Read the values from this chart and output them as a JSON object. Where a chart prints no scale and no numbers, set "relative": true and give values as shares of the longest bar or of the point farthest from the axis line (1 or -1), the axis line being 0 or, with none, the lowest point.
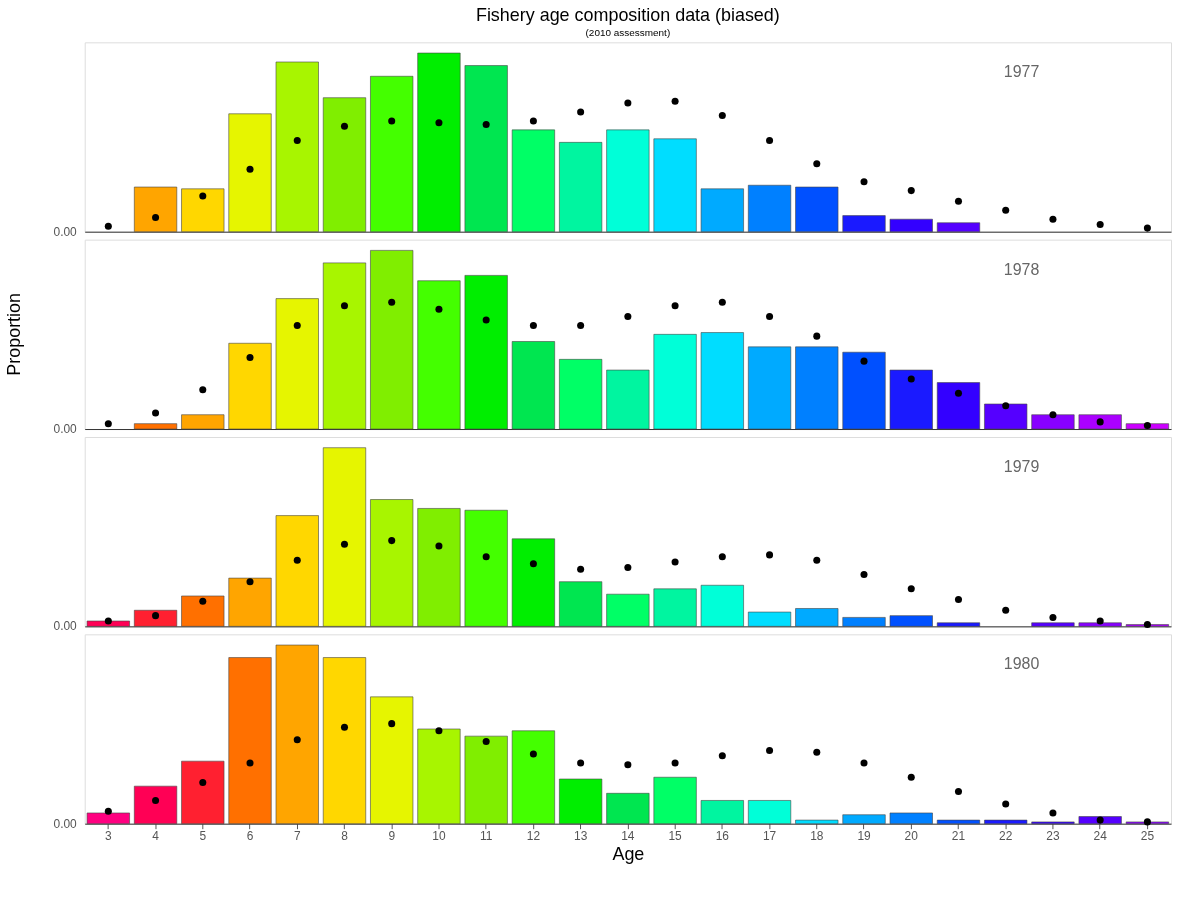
{
  "chart_data": [
    {
      "type": "bar",
      "title": "Fishery age composition data (biased)",
      "subtitle": "(2010 assessment)",
      "relative": true,
      "legend": false,
      "grid": false,
      "tick_labels": false,
      "marker": "circle",
      "annotations": [
        "1977",
        "0.00"
      ],
      "categories": [
        "3",
        "4",
        "5",
        "6",
        "7",
        "8",
        "9",
        "10",
        "11",
        "12",
        "13",
        "14",
        "15",
        "16",
        "17",
        "18",
        "19",
        "20",
        "21",
        "22",
        "23",
        "24",
        "25"
      ],
      "series": [
        {
          "colors": [
            "#ff7000",
            "#ffa500",
            "#ffd700",
            "#e6f500",
            "#a8f500",
            "#80ee00",
            "#44ff00",
            "#00ee00",
            "#00e650",
            "#00ff66",
            "#00f5a0",
            "#00ffd8",
            "#00ddff",
            "#00aaff",
            "#0080ff",
            "#0050ff",
            "#1a1aff",
            "#3300ff",
            "#5500ff",
            "#8800ff",
            "#aa00ff",
            "#cc00ff",
            "#dd00ee"
          ],
          "values": [
            0,
            0.25,
            0.24,
            0.66,
            0.95,
            0.75,
            0.87,
            1,
            0.93,
            0.57,
            0.5,
            0.57,
            0.52,
            0.24,
            0.26,
            0.25,
            0.09,
            0.07,
            0.05,
            0,
            0,
            0,
            0
          ]
        },
        {
          "type": "scatter",
          "color": "#000000",
          "values": [
            0.03,
            0.08,
            0.2,
            0.35,
            0.51,
            0.59,
            0.62,
            0.61,
            0.6,
            0.62,
            0.67,
            0.72,
            0.73,
            0.65,
            0.51,
            0.38,
            0.28,
            0.23,
            0.17,
            0.12,
            0.07,
            0.04,
            0.02
          ]
        }
      ]
    },
    {
      "type": "bar",
      "relative": true,
      "legend": false,
      "grid": false,
      "tick_labels": false,
      "marker": "circle",
      "ylabel": "Proportion",
      "annotations": [
        "1978",
        "0.00"
      ],
      "categories": [
        "3",
        "4",
        "5",
        "6",
        "7",
        "8",
        "9",
        "10",
        "11",
        "12",
        "13",
        "14",
        "15",
        "16",
        "17",
        "18",
        "19",
        "20",
        "21",
        "22",
        "23",
        "24",
        "25"
      ],
      "series": [
        {
          "colors": [
            "#ff2030",
            "#ff7000",
            "#ffa500",
            "#ffd700",
            "#e6f500",
            "#a8f500",
            "#80ee00",
            "#44ff00",
            "#00ee00",
            "#00e650",
            "#00ff66",
            "#00f5a0",
            "#00ffd8",
            "#00ddff",
            "#00aaff",
            "#0080ff",
            "#0050ff",
            "#1a1aff",
            "#3300ff",
            "#5500ff",
            "#8800ff",
            "#aa00ff",
            "#cc00ff"
          ],
          "values": [
            0,
            0.03,
            0.08,
            0.48,
            0.73,
            0.93,
            1,
            0.83,
            0.86,
            0.49,
            0.39,
            0.33,
            0.53,
            0.54,
            0.46,
            0.46,
            0.43,
            0.33,
            0.26,
            0.14,
            0.08,
            0.08,
            0.03
          ]
        },
        {
          "type": "scatter",
          "color": "#000000",
          "values": [
            0.03,
            0.09,
            0.22,
            0.4,
            0.58,
            0.69,
            0.71,
            0.67,
            0.61,
            0.58,
            0.58,
            0.63,
            0.69,
            0.71,
            0.63,
            0.52,
            0.38,
            0.28,
            0.2,
            0.13,
            0.08,
            0.04,
            0.02
          ]
        }
      ]
    },
    {
      "type": "bar",
      "relative": true,
      "legend": false,
      "grid": false,
      "tick_labels": false,
      "marker": "circle",
      "annotations": [
        "1979",
        "0.00"
      ],
      "categories": [
        "3",
        "4",
        "5",
        "6",
        "7",
        "8",
        "9",
        "10",
        "11",
        "12",
        "13",
        "14",
        "15",
        "16",
        "17",
        "18",
        "19",
        "20",
        "21",
        "22",
        "23",
        "24",
        "25"
      ],
      "series": [
        {
          "colors": [
            "#ff0055",
            "#ff2030",
            "#ff7000",
            "#ffa500",
            "#ffd700",
            "#e6f500",
            "#a8f500",
            "#80ee00",
            "#44ff00",
            "#00ee00",
            "#00e650",
            "#00ff66",
            "#00f5a0",
            "#00ffd8",
            "#00ddff",
            "#00aaff",
            "#0080ff",
            "#0050ff",
            "#1a1aff",
            "#3300ff",
            "#5500ff",
            "#8800ff",
            "#aa00ff"
          ],
          "values": [
            0.03,
            0.09,
            0.17,
            0.27,
            0.62,
            1,
            0.71,
            0.66,
            0.65,
            0.49,
            0.25,
            0.18,
            0.21,
            0.23,
            0.08,
            0.1,
            0.05,
            0.06,
            0.02,
            0,
            0.02,
            0.02,
            0.01
          ]
        },
        {
          "type": "scatter",
          "color": "#000000",
          "values": [
            0.03,
            0.06,
            0.14,
            0.25,
            0.37,
            0.46,
            0.48,
            0.45,
            0.39,
            0.35,
            0.32,
            0.33,
            0.36,
            0.39,
            0.4,
            0.37,
            0.29,
            0.21,
            0.15,
            0.09,
            0.05,
            0.03,
            0.01
          ]
        }
      ]
    },
    {
      "type": "bar",
      "relative": true,
      "legend": false,
      "grid": false,
      "tick_labels": "x",
      "marker": "circle",
      "xlabel": "Age",
      "annotations": [
        "1980",
        "0.00"
      ],
      "categories": [
        "3",
        "4",
        "5",
        "6",
        "7",
        "8",
        "9",
        "10",
        "11",
        "12",
        "13",
        "14",
        "15",
        "16",
        "17",
        "18",
        "19",
        "20",
        "21",
        "22",
        "23",
        "24",
        "25"
      ],
      "series": [
        {
          "colors": [
            "#ff0080",
            "#ff0055",
            "#ff2030",
            "#ff7000",
            "#ffa500",
            "#ffd700",
            "#e6f500",
            "#a8f500",
            "#80ee00",
            "#44ff00",
            "#00ee00",
            "#00e650",
            "#00ff66",
            "#00f5a0",
            "#00ffd8",
            "#00ddff",
            "#00aaff",
            "#0080ff",
            "#0050ff",
            "#1a1aff",
            "#3300ff",
            "#5500ff",
            "#8800ff"
          ],
          "values": [
            0.06,
            0.21,
            0.35,
            0.93,
            1,
            0.93,
            0.71,
            0.53,
            0.49,
            0.52,
            0.25,
            0.17,
            0.26,
            0.13,
            0.13,
            0.02,
            0.05,
            0.06,
            0.02,
            0.02,
            0.01,
            0.04,
            0.01
          ]
        },
        {
          "type": "scatter",
          "color": "#000000",
          "values": [
            0.07,
            0.13,
            0.23,
            0.34,
            0.47,
            0.54,
            0.56,
            0.52,
            0.46,
            0.39,
            0.34,
            0.33,
            0.34,
            0.38,
            0.41,
            0.4,
            0.34,
            0.26,
            0.18,
            0.11,
            0.06,
            0.02,
            0.01
          ]
        }
      ]
    }
  ]
}
